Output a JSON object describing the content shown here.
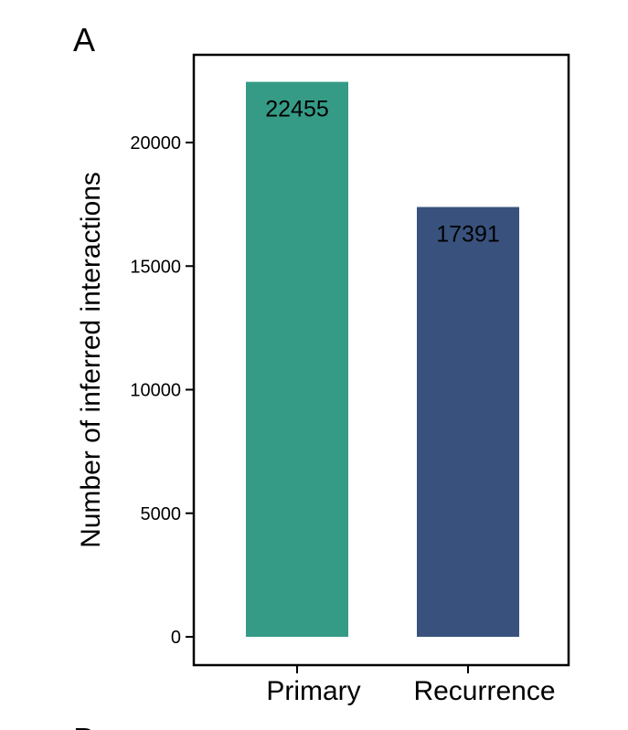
{
  "panel_letter": "A",
  "next_panel_letter": "B",
  "chart_data": {
    "type": "bar",
    "categories": [
      "Primary",
      "Recurrence"
    ],
    "values": [
      22455,
      17391
    ],
    "data_labels": [
      "22455",
      "17391"
    ],
    "colors": [
      "#359B86",
      "#39527D"
    ],
    "title": "",
    "xlabel": "",
    "ylabel": "Number of inferred interactions",
    "ylim": [
      0,
      23500
    ],
    "yticks": [
      0,
      5000,
      10000,
      15000,
      20000
    ],
    "grid": false,
    "legend": "none"
  }
}
